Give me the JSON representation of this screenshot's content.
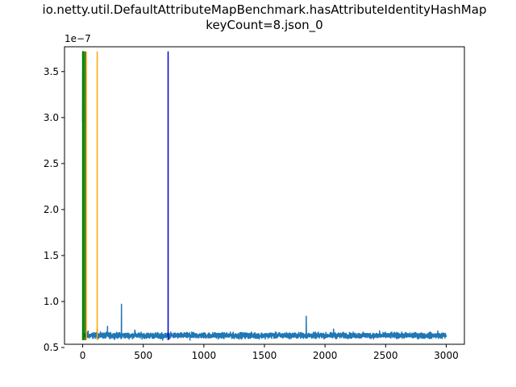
{
  "chart_data": {
    "type": "line",
    "title_lines": [
      "io.netty.util.DefaultAttributeMapBenchmark.hasAttributeIdentityHashMap",
      "keyCount=8.json_0"
    ],
    "xlabel": "",
    "ylabel": "",
    "y_offset_text": "1e−7",
    "xlim": [
      -150,
      3150
    ],
    "ylim": [
      0.535,
      3.77
    ],
    "y_unit_scale": 1e-07,
    "x_ticks": [
      0,
      500,
      1000,
      1500,
      2000,
      2500,
      3000
    ],
    "x_tick_labels": [
      "0",
      "500",
      "1000",
      "1500",
      "2000",
      "2500",
      "3000"
    ],
    "y_ticks": [
      0.5,
      1.0,
      1.5,
      2.0,
      2.5,
      3.0,
      3.5
    ],
    "y_tick_labels": [
      "0.5",
      "1.0",
      "1.5",
      "2.0",
      "2.5",
      "3.0",
      "3.5"
    ],
    "grid": false,
    "legend": "none",
    "series": [
      {
        "color": "#1f77b4",
        "n_points": 3000,
        "baseline": 0.63,
        "noise": 0.015,
        "initial": [
          {
            "x": 0,
            "y": 2.95
          },
          {
            "x": 1,
            "y": 3.5
          },
          {
            "x": 2,
            "y": 3.72
          },
          {
            "x": 3,
            "y": 1.6
          },
          {
            "x": 4,
            "y": 0.8
          },
          {
            "x": 5,
            "y": 0.66
          }
        ],
        "spikes": [
          {
            "x": 45,
            "y": 0.68
          },
          {
            "x": 120,
            "y": 0.7
          },
          {
            "x": 205,
            "y": 0.73
          },
          {
            "x": 320,
            "y": 0.97
          },
          {
            "x": 430,
            "y": 0.69
          },
          {
            "x": 1845,
            "y": 0.84
          },
          {
            "x": 2070,
            "y": 0.7
          },
          {
            "x": 2450,
            "y": 0.68
          },
          {
            "x": 2930,
            "y": 0.68
          }
        ],
        "dips": [
          {
            "x": 660,
            "y": 0.58
          },
          {
            "x": 885,
            "y": 0.58
          },
          {
            "x": 1290,
            "y": 0.59
          }
        ]
      }
    ],
    "vertical_lines": [
      {
        "x": 0,
        "color": "#008000"
      },
      {
        "x": 8,
        "color": "#008000"
      },
      {
        "x": 20,
        "color": "#006400"
      },
      {
        "x": 30,
        "color": "#ffa500"
      },
      {
        "x": 120,
        "color": "#ffa500"
      },
      {
        "x": 705,
        "color": "#0000cd"
      }
    ],
    "vline_ymin": 0.58,
    "vline_ymax": 3.72
  }
}
